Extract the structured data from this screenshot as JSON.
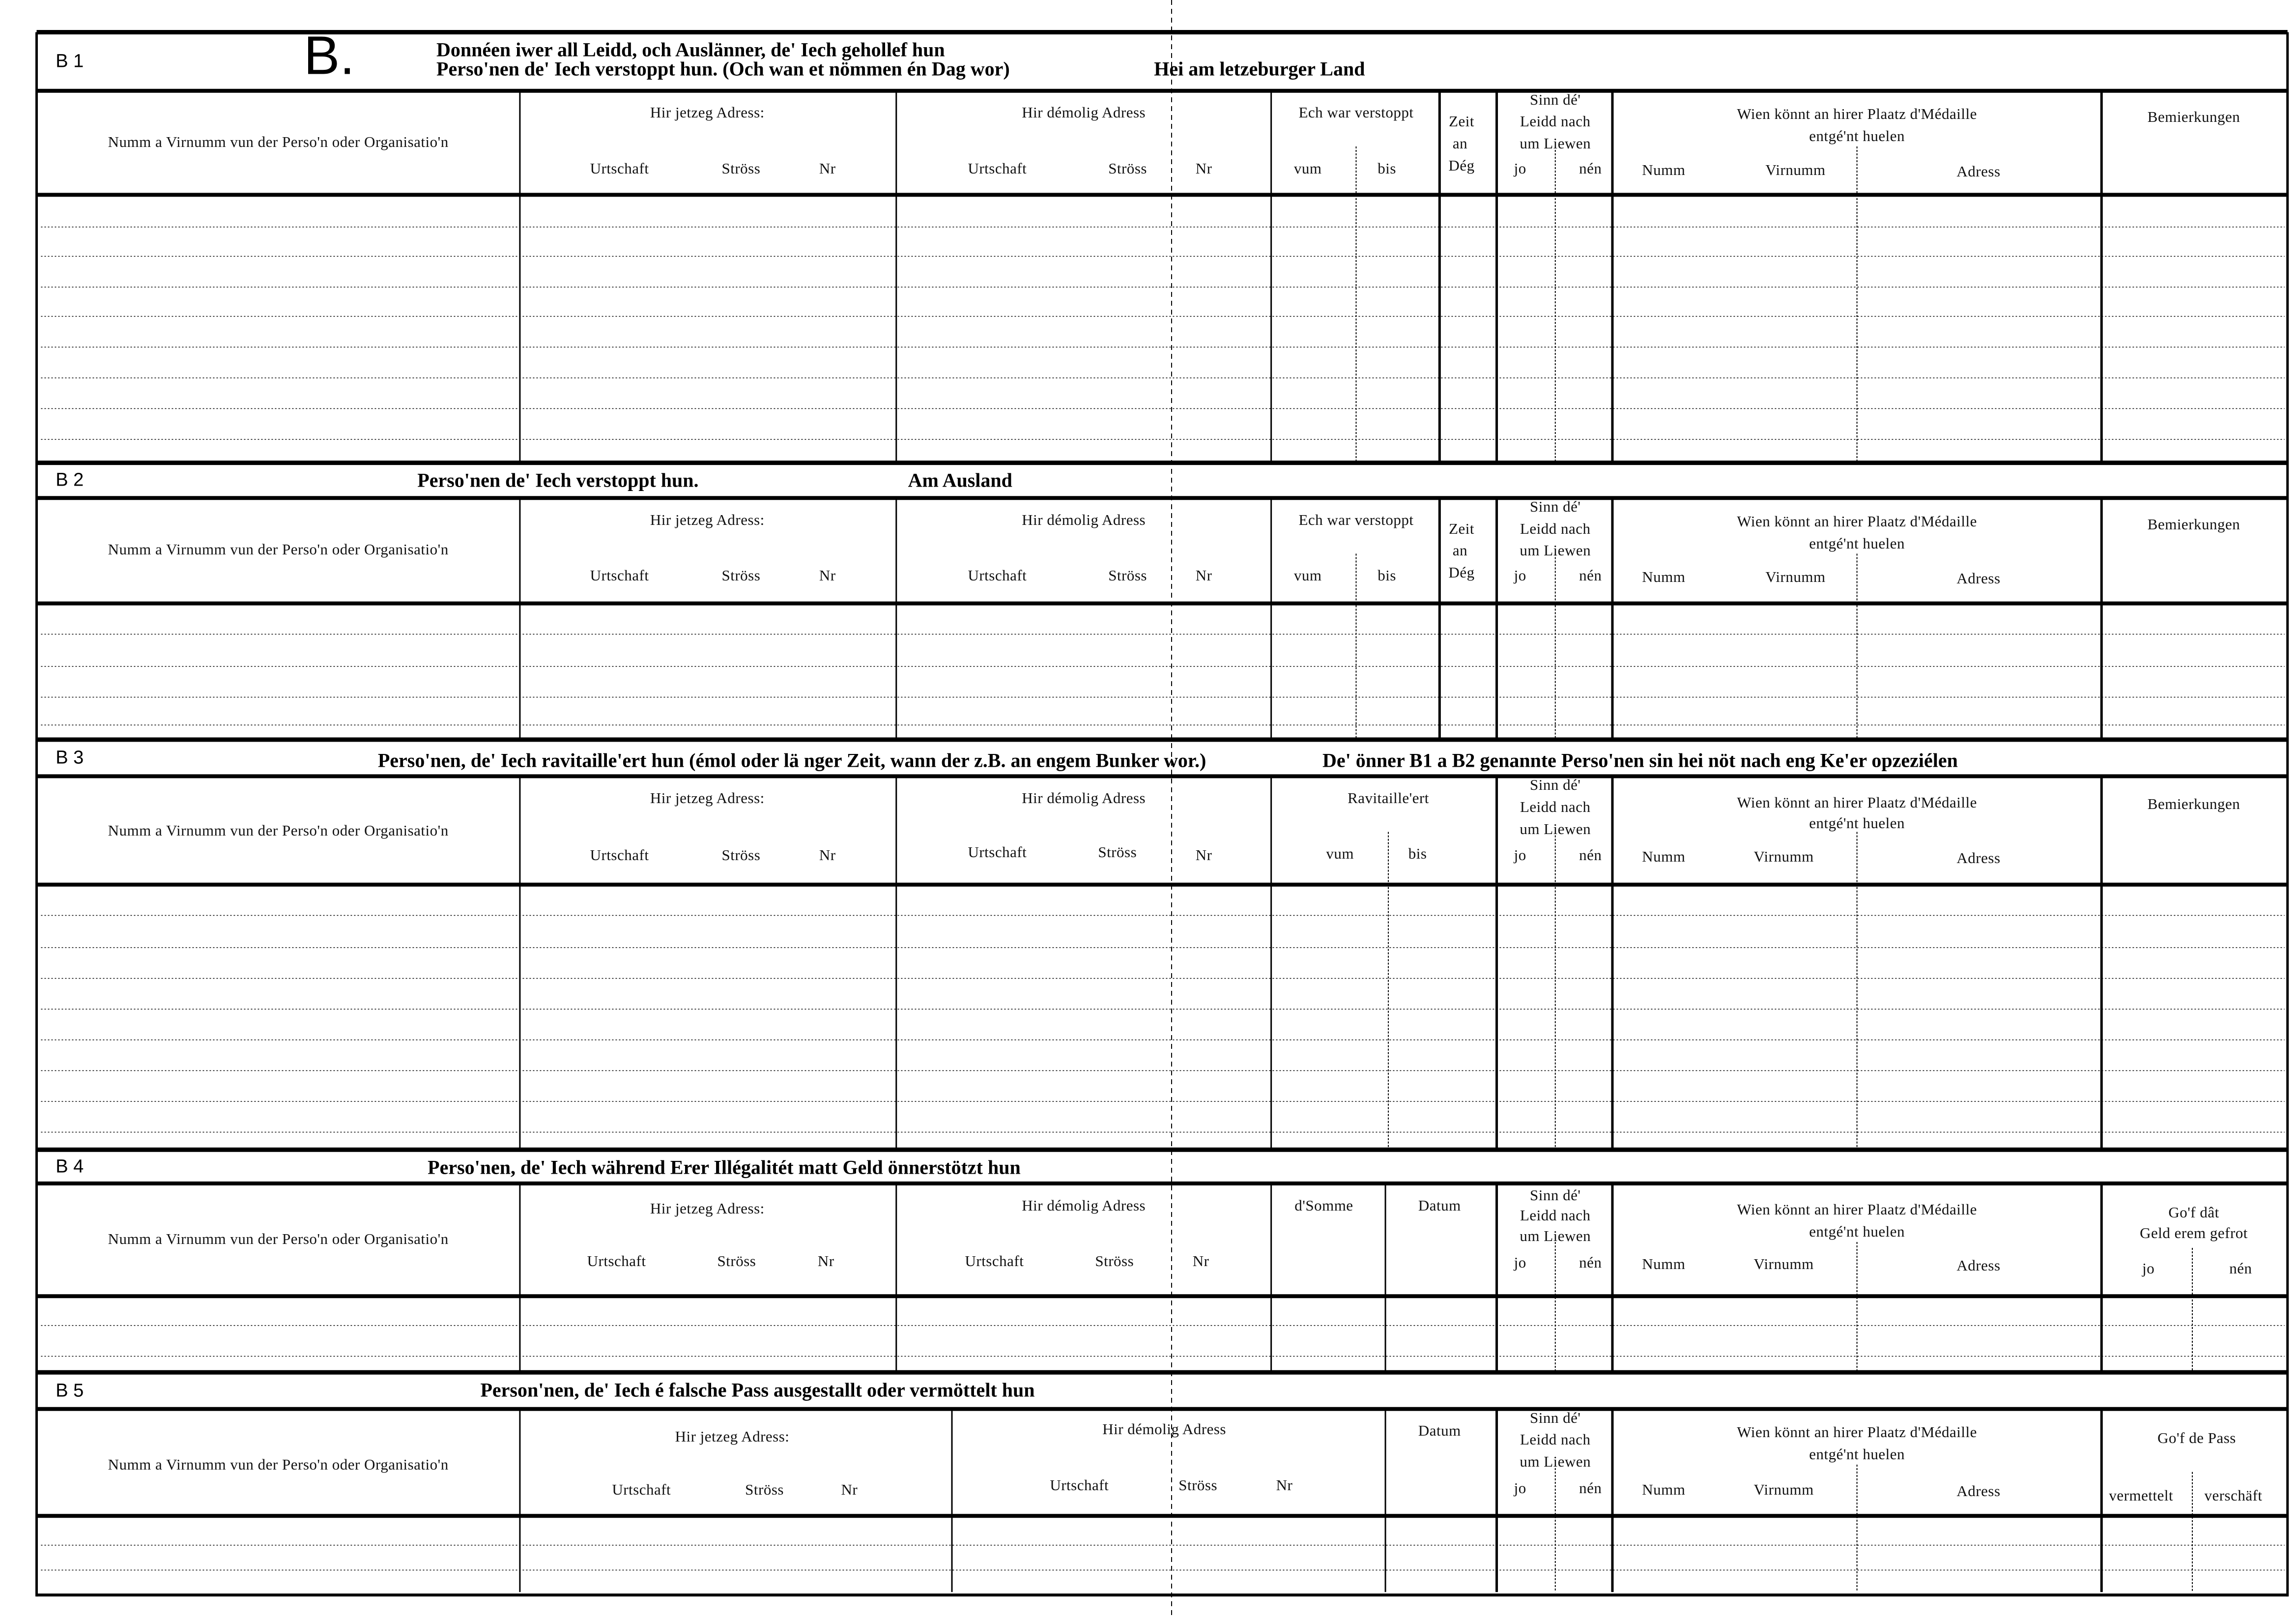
{
  "form_letter": "B.",
  "sections": [
    {
      "label": "B 1",
      "title": [
        "Donnéen iwer all Leidd, och Auslänner, de' Iech gehollef hun",
        "Perso'nen de' Iech verstoppt hun. (Och wan et nömmen én Dag wor)",
        "Hei am letzeburger Land"
      ],
      "headers": [
        "Numm a Virnumm vun der Perso'n oder Organisatio'n",
        "Hir jetzeg Adress:",
        "Urtschaft",
        "Ströss",
        "Nr",
        "Hir démolig Adress",
        "Urtschaft",
        "Ströss",
        "Nr",
        "Ech war verstoppt",
        "vum",
        "bis",
        "Zeit",
        "an",
        "Dég",
        "Sinn  dé'",
        "Leidd  nach",
        "um Liewen",
        "jo",
        "nén",
        "Wien  könnt  an  hirer  Plaatz  d'Médaille",
        "entgé'nt huelen",
        "Numm",
        "Virnumm",
        "Adress",
        "Bemierkungen"
      ]
    },
    {
      "label": "B 2",
      "title": [
        "Perso'nen de' Iech verstoppt hun.",
        "Am  Ausland"
      ],
      "headers": [
        "Numm a Virnumm vun der Perso'n oder Organisatio'n",
        "Hir jetzeg Adress:",
        "Urtschaft",
        "Ströss",
        "Nr",
        "Hir démolig Adress",
        "Urtschaft",
        "Ströss",
        "Nr",
        "Ech war verstoppt",
        "vum",
        "bis",
        "Zeit",
        "an",
        "Dég",
        "Sinn  dé'",
        "Leidd  nach",
        "um Liewen",
        "jo",
        "nén",
        "Wien  könnt  an  hirer  Plaatz  d'Médaille",
        "entgé'nt huelen",
        "Numm",
        "Virnumm",
        "Adress",
        "Bemierkungen"
      ]
    },
    {
      "label": "B 3",
      "title": [
        "Perso'nen, de' Iech ravitaille'ert hun (émol oder lä nger Zeit, wann der z.B. an engem Bunker wor.)",
        "De' önner B1 a B2 genannte Perso'nen sin hei nöt nach eng Ke'er opzeziélen"
      ],
      "headers": [
        "Numm a Virnumm vun der Perso'n oder Organisatio'n",
        "Hir jetzeg Adress:",
        "Urtschaft",
        "Ströss",
        "Nr",
        "Hir démolig Adress",
        "Urtschaft",
        "Ströss",
        "Nr",
        "Ravitaille'ert",
        "vum",
        "bis",
        "Sinn  dé'",
        "Leidd  nach",
        "um Liewen",
        "jo",
        "nén",
        "Wien  könnt  an  hirer  Plaatz  d'Médaille",
        "entgé'nt huelen",
        "Numm",
        "Virnumm",
        "Adress",
        "Bemierkungen"
      ]
    },
    {
      "label": "B 4",
      "title": [
        "Perso'nen, de' Iech während Erer Illégalitét matt  Geld önnerstötzt hun"
      ],
      "headers": [
        "Numm a Virnumm vun der Perso'n oder Organisatio'n",
        "Hir jetzeg Adress:",
        "Urtschaft",
        "Ströss",
        "Nr",
        "Hir démolig Adress",
        "Urtschaft",
        "Ströss",
        "Nr",
        "d'Somme",
        "Datum",
        "Sinn  dé'",
        "Leidd  nach",
        "um Liewen",
        "jo",
        "nén",
        "Wien  könnt  an  hirer  Plaatz  d'Médaille",
        "entgé'nt huelen",
        "Numm",
        "Virnumm",
        "Adress",
        "Go'f  dât",
        "Geld  erem  gefrot",
        "jo",
        "nén"
      ]
    },
    {
      "label": "B 5",
      "title": [
        "Person'nen, de' Iech é falsche Pass ausgestallt oder  vermöttelt hun"
      ],
      "headers": [
        "Numm a Virnumm vun der Perso'n oder Organisatio'n",
        "Hir jetzeg Adress:",
        "Urtschaft",
        "Ströss",
        "Nr",
        "Hir démolig Adress",
        "Urtschaft",
        "Ströss",
        "Nr",
        "Datum",
        "Sinn  dé'",
        "Leidd  nach",
        "um Liewen",
        "jo",
        "nén",
        "Wien  könnt  an  hirer  Plaatz  d'Médaille",
        "entgé'nt huelen",
        "Numm",
        "Virnumm",
        "Adress",
        "Go'f de Pass",
        "vermettelt",
        "verschäft"
      ]
    }
  ]
}
